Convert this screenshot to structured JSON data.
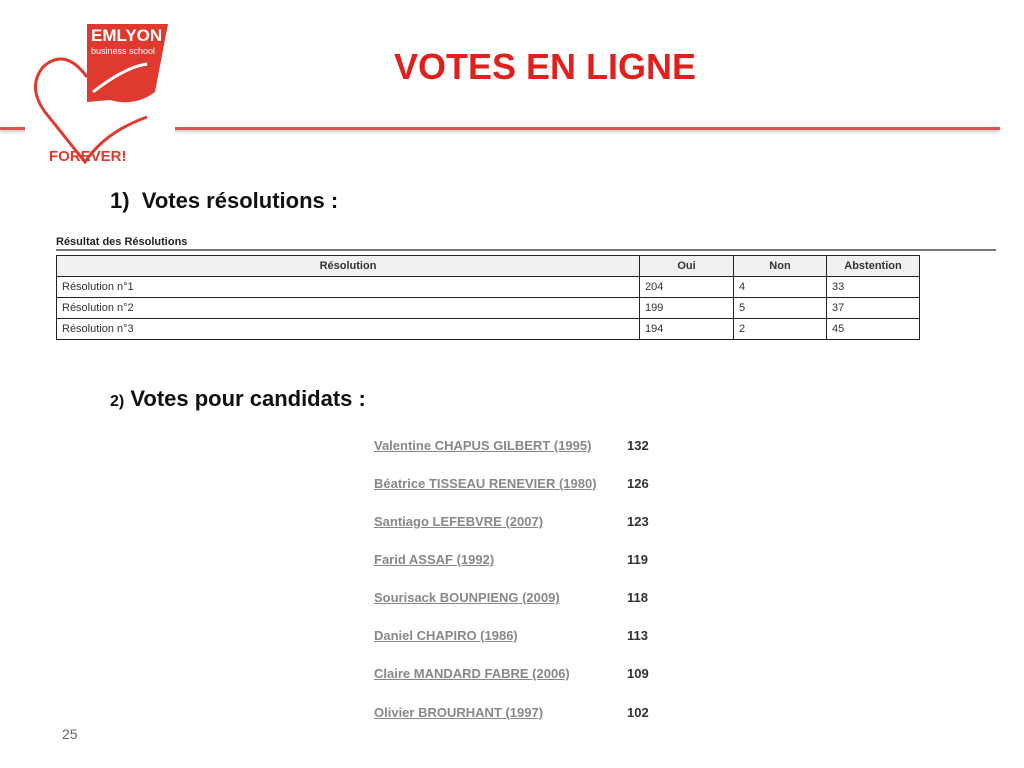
{
  "logo": {
    "brand": "EMLYON",
    "subtitle": "business school",
    "tagline": "FOREVER!"
  },
  "title": "VOTES EN LIGNE",
  "section1": {
    "heading": "1)  Votes résolutions :"
  },
  "resolutions": {
    "caption": "Résultat des Résolutions",
    "headers": [
      "Résolution",
      "Oui",
      "Non",
      "Abstention"
    ],
    "rows": [
      [
        "Résolution n°1",
        "204",
        "4",
        "33"
      ],
      [
        "Résolution n°2",
        "199",
        "5",
        "37"
      ],
      [
        "Résolution n°3",
        "194",
        "2",
        "45"
      ]
    ]
  },
  "section2": {
    "number": "2)",
    "heading": " Votes pour candidats :"
  },
  "candidates": [
    {
      "name": "Valentine CHAPUS GILBERT (1995)",
      "votes": "132"
    },
    {
      "name": "Béatrice TISSEAU RENEVIER (1980)",
      "votes": "126"
    },
    {
      "name": "Santiago LEFEBVRE (2007)",
      "votes": "123"
    },
    {
      "name": "Farid ASSAF (1992)",
      "votes": "119"
    },
    {
      "name": "Sourisack BOUNPIENG (2009)",
      "votes": "118"
    },
    {
      "name": "Daniel CHAPIRO (1986)",
      "votes": "113"
    },
    {
      "name": "Claire MANDARD FABRE (2006)",
      "votes": "109"
    },
    {
      "name": "Olivier BROURHANT (1997)",
      "votes": "102"
    }
  ],
  "page_number": "25",
  "colors": {
    "accent": "#e0201c"
  }
}
